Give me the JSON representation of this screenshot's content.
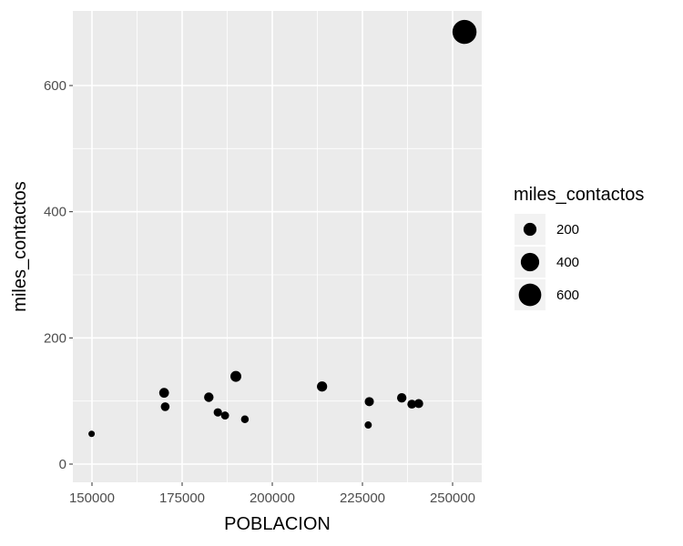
{
  "chart_data": {
    "type": "scatter",
    "xlabel": "POBLACION",
    "ylabel": "miles_contactos",
    "xlim": [
      144000,
      258000
    ],
    "ylim": [
      -30,
      710
    ],
    "x_ticks": [
      {
        "value": 150000,
        "label": "150000"
      },
      {
        "value": 175000,
        "label": "175000"
      },
      {
        "value": 200000,
        "label": "200000"
      },
      {
        "value": 225000,
        "label": "225000"
      },
      {
        "value": 250000,
        "label": "250000"
      }
    ],
    "y_ticks": [
      {
        "value": 0,
        "label": "0"
      },
      {
        "value": 200,
        "label": "200"
      },
      {
        "value": 400,
        "label": "400"
      },
      {
        "value": 600,
        "label": "600"
      }
    ],
    "points": [
      {
        "x": 149900,
        "y": 48
      },
      {
        "x": 170000,
        "y": 113
      },
      {
        "x": 170300,
        "y": 91
      },
      {
        "x": 182400,
        "y": 106
      },
      {
        "x": 184900,
        "y": 82
      },
      {
        "x": 186900,
        "y": 77
      },
      {
        "x": 189900,
        "y": 139
      },
      {
        "x": 192400,
        "y": 71
      },
      {
        "x": 213800,
        "y": 123
      },
      {
        "x": 226600,
        "y": 62
      },
      {
        "x": 226900,
        "y": 99
      },
      {
        "x": 235900,
        "y": 105
      },
      {
        "x": 238700,
        "y": 95
      },
      {
        "x": 240600,
        "y": 96
      },
      {
        "x": 253300,
        "y": 685
      }
    ],
    "size_legend": {
      "title": "miles_contactos",
      "entries": [
        {
          "value": 200,
          "label": "200"
        },
        {
          "value": 400,
          "label": "400"
        },
        {
          "value": 600,
          "label": "600"
        }
      ]
    },
    "grid": true,
    "legend_position": "right",
    "colors": {
      "panel": "#ebebeb",
      "grid_major": "#ffffff",
      "point": "#000000",
      "tick_text": "#4d4d4d",
      "legend_key_bg": "#f2f2f2"
    }
  }
}
